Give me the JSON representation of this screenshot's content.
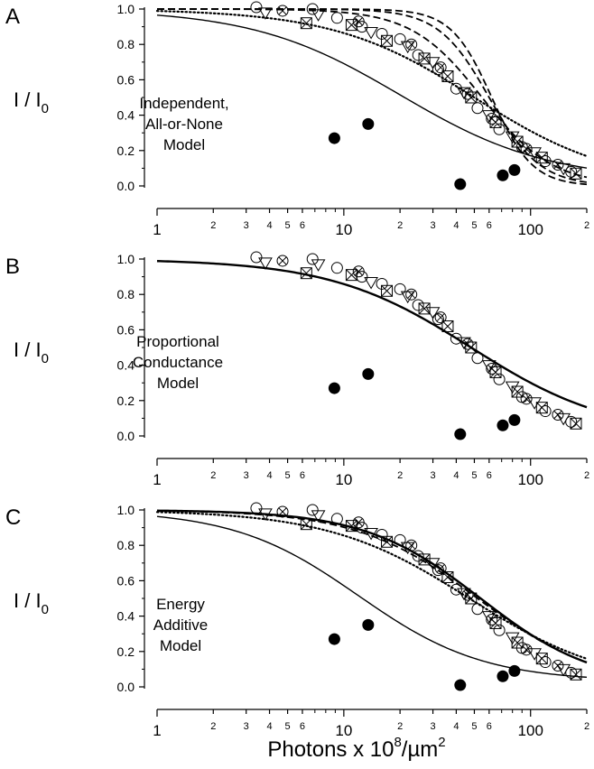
{
  "figure": {
    "xlabel_main": "Photons x 10",
    "xlabel_sup": "8",
    "xlabel_tail": "/µm",
    "xlabel_tail_sup": "2"
  },
  "chart_data": [
    {
      "type": "scatter",
      "panel_letter": "A",
      "title": "",
      "ylabel": "I / I",
      "ylabel_sub": "0",
      "model_label": [
        "Independent,",
        "All-or-None",
        "Model"
      ],
      "xscale": "log",
      "xlim": [
        1,
        200
      ],
      "ylim": [
        0,
        1
      ],
      "yticks": [
        "0.0",
        "0.2",
        "0.4",
        "0.6",
        "0.8",
        "1.0"
      ],
      "xtick_labels": [
        "1",
        "2",
        "3",
        "4",
        "5",
        "6",
        "10",
        "2",
        "3",
        "4",
        "5",
        "6",
        "100",
        "2"
      ],
      "filled_points": [
        [
          8.9,
          0.27
        ],
        [
          13.5,
          0.35
        ],
        [
          42,
          0.01
        ],
        [
          71,
          0.06
        ],
        [
          82,
          0.09
        ]
      ],
      "open_circles": [
        [
          3.4,
          1.01
        ],
        [
          6.8,
          1.0
        ],
        [
          9.2,
          0.95
        ],
        [
          12.5,
          0.9
        ],
        [
          16,
          0.86
        ],
        [
          20,
          0.83
        ],
        [
          25,
          0.74
        ],
        [
          32,
          0.66
        ],
        [
          40,
          0.55
        ],
        [
          52,
          0.44
        ],
        [
          68,
          0.32
        ],
        [
          90,
          0.22
        ],
        [
          120,
          0.14
        ],
        [
          165,
          0.08
        ]
      ],
      "triangles": [
        [
          3.8,
          0.98
        ],
        [
          7.3,
          0.97
        ],
        [
          14,
          0.87
        ],
        [
          22,
          0.79
        ],
        [
          30,
          0.7
        ],
        [
          44,
          0.53
        ],
        [
          60,
          0.4
        ],
        [
          80,
          0.28
        ],
        [
          105,
          0.19
        ],
        [
          150,
          0.1
        ]
      ],
      "boxed_x": [
        [
          6.3,
          0.92
        ],
        [
          11,
          0.91
        ],
        [
          17,
          0.82
        ],
        [
          27,
          0.72
        ],
        [
          36,
          0.62
        ],
        [
          48,
          0.5
        ],
        [
          65,
          0.36
        ],
        [
          85,
          0.25
        ],
        [
          115,
          0.16
        ],
        [
          175,
          0.07
        ]
      ],
      "circle_x": [
        [
          4.7,
          0.99
        ],
        [
          12,
          0.93
        ],
        [
          23,
          0.8
        ],
        [
          33,
          0.67
        ],
        [
          46,
          0.52
        ],
        [
          62,
          0.38
        ],
        [
          95,
          0.21
        ],
        [
          140,
          0.12
        ]
      ],
      "curves": [
        {
          "style": "solid",
          "I50": 20,
          "n": 1.1,
          "floor": 0.03
        },
        {
          "style": "dotted",
          "I50": 50,
          "n": 1.15,
          "floor": 0.0
        },
        {
          "style": "dashed",
          "I50": 55,
          "n": 2.3,
          "floor": 0.0
        },
        {
          "style": "dashed",
          "I50": 60,
          "n": 3.2,
          "floor": 0.0
        },
        {
          "style": "dashed",
          "I50": 62,
          "n": 4.0,
          "floor": 0.0
        }
      ],
      "grid": false,
      "legend": "none"
    },
    {
      "type": "scatter",
      "panel_letter": "B",
      "title": "",
      "ylabel": "I / I",
      "ylabel_sub": "0",
      "model_label": [
        "Proportional",
        "Conductance",
        "Model"
      ],
      "xscale": "log",
      "xlim": [
        1,
        200
      ],
      "ylim": [
        0,
        1
      ],
      "yticks": [
        "0.0",
        "0.2",
        "0.4",
        "0.6",
        "0.8",
        "1.0"
      ],
      "xtick_labels": [
        "1",
        "2",
        "3",
        "4",
        "5",
        "6",
        "10",
        "2",
        "3",
        "4",
        "5",
        "6",
        "100",
        "2"
      ],
      "filled_points": [
        [
          8.9,
          0.27
        ],
        [
          13.5,
          0.35
        ],
        [
          42,
          0.01
        ],
        [
          71,
          0.06
        ],
        [
          82,
          0.09
        ]
      ],
      "open_circles": [
        [
          3.4,
          1.01
        ],
        [
          6.8,
          1.0
        ],
        [
          9.2,
          0.95
        ],
        [
          12.5,
          0.9
        ],
        [
          16,
          0.86
        ],
        [
          20,
          0.83
        ],
        [
          25,
          0.74
        ],
        [
          32,
          0.66
        ],
        [
          40,
          0.55
        ],
        [
          52,
          0.44
        ],
        [
          68,
          0.32
        ],
        [
          90,
          0.22
        ],
        [
          120,
          0.14
        ],
        [
          165,
          0.08
        ]
      ],
      "triangles": [
        [
          3.8,
          0.98
        ],
        [
          7.3,
          0.97
        ],
        [
          14,
          0.87
        ],
        [
          22,
          0.79
        ],
        [
          30,
          0.7
        ],
        [
          44,
          0.53
        ],
        [
          60,
          0.4
        ],
        [
          80,
          0.28
        ],
        [
          105,
          0.19
        ],
        [
          150,
          0.1
        ]
      ],
      "boxed_x": [
        [
          6.3,
          0.92
        ],
        [
          11,
          0.91
        ],
        [
          17,
          0.82
        ],
        [
          27,
          0.72
        ],
        [
          36,
          0.62
        ],
        [
          48,
          0.5
        ],
        [
          65,
          0.36
        ],
        [
          85,
          0.25
        ],
        [
          115,
          0.16
        ],
        [
          175,
          0.07
        ]
      ],
      "circle_x": [
        [
          4.7,
          0.99
        ],
        [
          12,
          0.93
        ],
        [
          23,
          0.8
        ],
        [
          33,
          0.67
        ],
        [
          46,
          0.52
        ],
        [
          62,
          0.38
        ],
        [
          95,
          0.21
        ],
        [
          140,
          0.12
        ]
      ],
      "curves": [
        {
          "style": "solid-bold",
          "I50": 48,
          "n": 1.15,
          "floor": 0.0
        }
      ],
      "grid": false,
      "legend": "none"
    },
    {
      "type": "scatter",
      "panel_letter": "C",
      "title": "",
      "ylabel": "I / I",
      "ylabel_sub": "0",
      "model_label": [
        "Energy",
        "Additive",
        "Model"
      ],
      "xscale": "log",
      "xlim": [
        1,
        200
      ],
      "ylim": [
        0,
        1
      ],
      "yticks": [
        "0.0",
        "0.2",
        "0.4",
        "0.6",
        "0.8",
        "1.0"
      ],
      "xtick_labels": [
        "1",
        "2",
        "3",
        "4",
        "5",
        "6",
        "10",
        "2",
        "3",
        "4",
        "5",
        "6",
        "100",
        "2"
      ],
      "filled_points": [
        [
          8.9,
          0.27
        ],
        [
          13.5,
          0.35
        ],
        [
          42,
          0.01
        ],
        [
          71,
          0.06
        ],
        [
          82,
          0.09
        ]
      ],
      "open_circles": [
        [
          3.4,
          1.01
        ],
        [
          6.8,
          1.0
        ],
        [
          9.2,
          0.95
        ],
        [
          12.5,
          0.9
        ],
        [
          16,
          0.86
        ],
        [
          20,
          0.83
        ],
        [
          25,
          0.74
        ],
        [
          32,
          0.66
        ],
        [
          40,
          0.55
        ],
        [
          52,
          0.44
        ],
        [
          68,
          0.32
        ],
        [
          90,
          0.22
        ],
        [
          120,
          0.14
        ],
        [
          165,
          0.08
        ]
      ],
      "triangles": [
        [
          3.8,
          0.98
        ],
        [
          7.3,
          0.97
        ],
        [
          14,
          0.87
        ],
        [
          22,
          0.79
        ],
        [
          30,
          0.7
        ],
        [
          44,
          0.53
        ],
        [
          60,
          0.4
        ],
        [
          80,
          0.28
        ],
        [
          105,
          0.19
        ],
        [
          150,
          0.1
        ]
      ],
      "boxed_x": [
        [
          6.3,
          0.92
        ],
        [
          11,
          0.91
        ],
        [
          17,
          0.82
        ],
        [
          27,
          0.72
        ],
        [
          36,
          0.62
        ],
        [
          48,
          0.5
        ],
        [
          65,
          0.36
        ],
        [
          85,
          0.25
        ],
        [
          115,
          0.16
        ],
        [
          175,
          0.07
        ]
      ],
      "circle_x": [
        [
          4.7,
          0.99
        ],
        [
          12,
          0.93
        ],
        [
          23,
          0.8
        ],
        [
          33,
          0.67
        ],
        [
          46,
          0.52
        ],
        [
          62,
          0.38
        ],
        [
          95,
          0.21
        ],
        [
          140,
          0.12
        ]
      ],
      "curves": [
        {
          "style": "solid",
          "I50": 12,
          "n": 1.3,
          "floor": 0.03
        },
        {
          "style": "dotted",
          "I50": 47,
          "n": 1.15,
          "floor": 0.0
        },
        {
          "style": "dashed",
          "I50": 52,
          "n": 1.35,
          "floor": 0.0
        },
        {
          "style": "solid-bold",
          "I50": 54,
          "n": 1.4,
          "floor": 0.0
        }
      ],
      "grid": false,
      "legend": "none"
    }
  ]
}
